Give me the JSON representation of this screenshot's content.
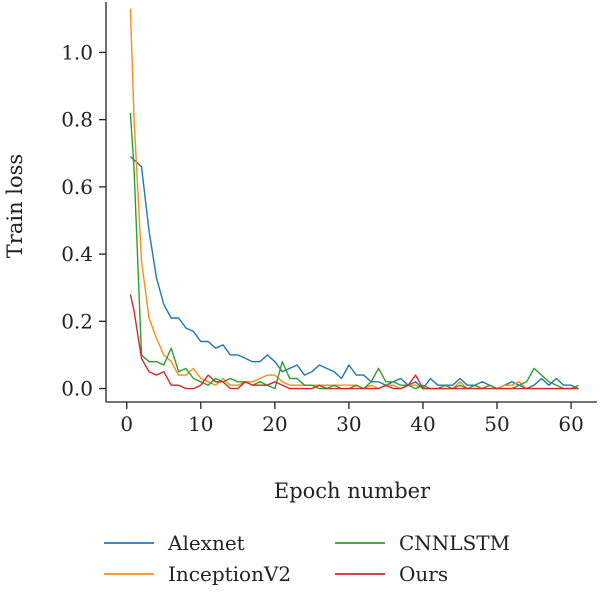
{
  "chart_data": {
    "type": "line",
    "title": "",
    "xlabel": "Epoch number",
    "ylabel": "Train loss",
    "xlim": [
      -2.8,
      63.5
    ],
    "ylim": [
      -0.04,
      1.15
    ],
    "xticks": [
      0,
      10,
      20,
      30,
      40,
      50,
      60
    ],
    "xtick_labels": [
      "0",
      "10",
      "20",
      "30",
      "40",
      "50",
      "60"
    ],
    "yticks": [
      0.0,
      0.2,
      0.4,
      0.6,
      0.8,
      1.0
    ],
    "ytick_labels": [
      "0.0",
      "0.2",
      "0.4",
      "0.6",
      "0.8",
      "1.0"
    ],
    "grid": false,
    "legend_position": "bottom, two columns",
    "x": [
      0.5,
      1,
      2,
      3,
      4,
      5,
      6,
      7,
      8,
      9,
      10,
      11,
      12,
      13,
      14,
      15,
      16,
      17,
      18,
      19,
      20,
      21,
      22,
      23,
      24,
      25,
      26,
      27,
      28,
      29,
      30,
      31,
      32,
      33,
      34,
      35,
      36,
      37,
      38,
      39,
      40,
      41,
      42,
      43,
      44,
      45,
      46,
      47,
      48,
      49,
      50,
      51,
      52,
      53,
      54,
      55,
      56,
      57,
      58,
      59,
      60,
      61
    ],
    "series": [
      {
        "name": "Alexnet",
        "color": "#1f77b4",
        "values": [
          0.69,
          0.68,
          0.66,
          0.47,
          0.33,
          0.25,
          0.21,
          0.21,
          0.18,
          0.17,
          0.14,
          0.14,
          0.12,
          0.13,
          0.1,
          0.1,
          0.09,
          0.08,
          0.08,
          0.1,
          0.08,
          0.05,
          0.06,
          0.07,
          0.04,
          0.05,
          0.07,
          0.06,
          0.05,
          0.03,
          0.07,
          0.04,
          0.04,
          0.02,
          0.02,
          0.01,
          0.02,
          0.03,
          0.01,
          0.02,
          0.0,
          0.03,
          0.01,
          0.01,
          0.01,
          0.03,
          0.01,
          0.01,
          0.02,
          0.01,
          0.0,
          0.01,
          0.02,
          0.01,
          0.0,
          0.01,
          0.03,
          0.01,
          0.03,
          0.01,
          0.01,
          0.0
        ]
      },
      {
        "name": "InceptionV2",
        "color": "#ff8c1a",
        "values": [
          1.13,
          0.8,
          0.38,
          0.21,
          0.15,
          0.1,
          0.08,
          0.04,
          0.04,
          0.06,
          0.03,
          0.02,
          0.01,
          0.03,
          0.01,
          0.01,
          0.02,
          0.02,
          0.03,
          0.04,
          0.04,
          0.02,
          0.01,
          0.01,
          0.01,
          0.01,
          0.01,
          0.01,
          0.01,
          0.01,
          0.01,
          0.01,
          0.0,
          0.01,
          0.0,
          0.01,
          0.01,
          0.0,
          0.01,
          0.01,
          0.0,
          0.0,
          0.0,
          0.0,
          0.0,
          0.02,
          0.0,
          0.0,
          0.0,
          0.01,
          0.0,
          0.01,
          0.01,
          0.02,
          0.0,
          0.0,
          0.0,
          0.0,
          0.0,
          0.0,
          0.0,
          0.0
        ]
      },
      {
        "name": "CNNLSTM",
        "color": "#2ca02c",
        "values": [
          0.82,
          0.65,
          0.1,
          0.08,
          0.08,
          0.07,
          0.12,
          0.05,
          0.06,
          0.03,
          0.02,
          0.01,
          0.03,
          0.02,
          0.03,
          0.02,
          0.02,
          0.01,
          0.02,
          0.01,
          0.0,
          0.08,
          0.03,
          0.03,
          0.01,
          0.01,
          0.0,
          0.0,
          0.01,
          0.0,
          0.0,
          0.01,
          0.0,
          0.02,
          0.06,
          0.02,
          0.02,
          0.01,
          0.01,
          0.0,
          0.01,
          0.0,
          0.0,
          0.01,
          0.0,
          0.01,
          0.0,
          0.01,
          0.0,
          0.01,
          0.0,
          0.0,
          0.0,
          0.01,
          0.02,
          0.06,
          0.04,
          0.02,
          0.01,
          0.0,
          0.0,
          0.01
        ]
      },
      {
        "name": "Ours",
        "color": "#d62728",
        "values": [
          0.28,
          0.23,
          0.09,
          0.05,
          0.04,
          0.05,
          0.01,
          0.01,
          0.0,
          0.0,
          0.01,
          0.04,
          0.02,
          0.02,
          0.0,
          0.0,
          0.02,
          0.01,
          0.01,
          0.01,
          0.02,
          0.01,
          0.0,
          0.0,
          0.0,
          0.0,
          0.01,
          0.0,
          0.0,
          0.0,
          0.0,
          0.0,
          0.0,
          0.0,
          0.0,
          0.01,
          0.0,
          0.0,
          0.01,
          0.04,
          0.0,
          0.0,
          0.0,
          0.0,
          0.0,
          0.0,
          0.0,
          0.0,
          0.0,
          0.0,
          0.0,
          0.0,
          0.0,
          0.0,
          0.0,
          0.0,
          0.0,
          0.0,
          0.0,
          0.0,
          0.0,
          0.0
        ]
      }
    ]
  }
}
